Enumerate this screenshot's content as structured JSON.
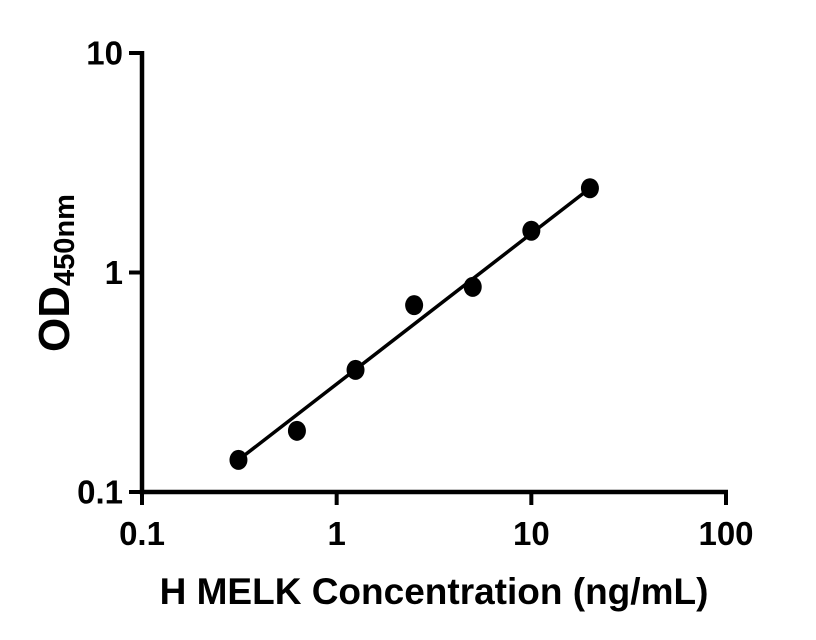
{
  "figure": {
    "background_color": "#ffffff",
    "ink_color": "#000000"
  },
  "chart_data": {
    "type": "scatter",
    "title": "",
    "xlabel": "H MELK Concentration (ng/mL)",
    "ylabel_base": "OD",
    "ylabel_subscript": "450nm",
    "x_scale": "log",
    "y_scale": "log",
    "xlim": [
      0.1,
      100
    ],
    "ylim": [
      0.1,
      10
    ],
    "x_ticks": [
      0.1,
      1,
      10,
      100
    ],
    "x_tick_labels": [
      "0.1",
      "1",
      "10",
      "100"
    ],
    "y_ticks": [
      0.1,
      1,
      10
    ],
    "y_tick_labels": [
      "0.1",
      "1",
      "10"
    ],
    "grid": false,
    "legend": null,
    "series": [
      {
        "name": "fit-line",
        "type": "line",
        "color": "#000000",
        "x": [
          0.313,
          20
        ],
        "y": [
          0.14,
          2.42
        ]
      },
      {
        "name": "standard-points",
        "type": "scatter",
        "marker": "filled-circle",
        "color": "#000000",
        "x": [
          0.313,
          0.625,
          1.25,
          2.5,
          5,
          10,
          20
        ],
        "y": [
          0.14,
          0.19,
          0.36,
          0.71,
          0.86,
          1.55,
          2.42
        ]
      }
    ]
  }
}
